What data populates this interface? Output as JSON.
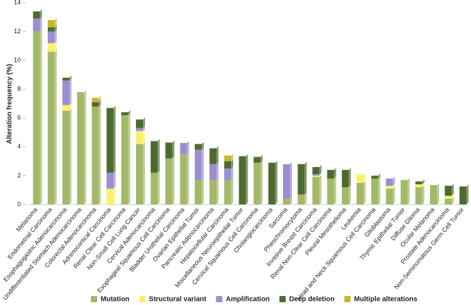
{
  "chart_data": {
    "type": "stacked_bar",
    "y_label": "Alteration frequency (%)",
    "ylim": [
      0,
      14
    ],
    "yticks": [
      0,
      2,
      4,
      6,
      8,
      10,
      12,
      14
    ],
    "categories": [
      "Melanoma",
      "Endometrial Carcinoma",
      "Esophagogastric Adenocarcinoma",
      "Undifferentiated Stomach Adenocarcinoma",
      "Colorectal Adenocarcinoma",
      "Adrenocortical Carcinoma",
      "Renal Clear Cell Carcinoma",
      "Non-Small Cell Lung Cancer",
      "Cervical Adenocarcinoma",
      "Esophageal Squamous Cell Carcinoma",
      "Bladder Urothelial Carcinoma",
      "Ovarian Epithelial Tumor",
      "Pancreatic Adenocarcinoma",
      "Hepatocellular Carcinoma",
      "Miscellaneous Neuroepithelial Tumor",
      "Cervical Squamous Cell Carcinoma",
      "Cholangiocarcinoma",
      "Sarcoma",
      "Pheochromocytoma",
      "Invasive Breast Carcinoma",
      "Renal Non-Clear Cell Carcinoma",
      "Pleural Mesothelioma",
      "Leukemia",
      "Head and Neck Squamous Cell Carcinoma",
      "Glioblastoma",
      "Thymic Epithelial Tumor",
      "Diffuse Glioma",
      "Ocular Melanoma",
      "Prostate Adenocarcinoma",
      "Non-Seminomatous Germ Cell Tumor"
    ],
    "series": [
      {
        "name": "Mutation",
        "color": "#a3b868",
        "values": [
          12.0,
          10.6,
          6.5,
          7.8,
          6.8,
          0,
          6.2,
          4.2,
          2.2,
          3.2,
          3.5,
          1.7,
          1.7,
          1.7,
          0,
          2.9,
          0,
          0.4,
          0.7,
          1.9,
          1.8,
          1.2,
          1.5,
          1.8,
          1.1,
          1.7,
          1.2,
          1.35,
          0.4,
          0
        ]
      },
      {
        "name": "Structural variant",
        "color": "#fbf06a",
        "values": [
          0,
          0.6,
          0.4,
          0,
          0,
          1.1,
          0,
          0.9,
          0,
          0,
          0,
          0,
          0,
          0,
          0,
          0,
          0,
          0,
          0,
          0.1,
          0,
          0,
          0.6,
          0,
          0.2,
          0,
          0.2,
          0,
          0.2,
          0
        ]
      },
      {
        "name": "Amplification",
        "color": "#9b8fd2",
        "values": [
          0.9,
          0.8,
          1.7,
          0,
          0,
          1.1,
          0,
          0.2,
          0,
          0,
          0.7,
          2.1,
          1.1,
          0.8,
          0,
          0,
          0,
          2.4,
          0,
          0.1,
          0,
          0,
          0,
          0,
          0.5,
          0,
          0,
          0,
          0,
          0
        ]
      },
      {
        "name": "Deep deletion",
        "color": "#4d6b30",
        "values": [
          0.5,
          0.3,
          0.2,
          0,
          0.3,
          4.5,
          0.2,
          0.6,
          2.2,
          1.1,
          0.05,
          0.4,
          1.1,
          0.5,
          3.35,
          0.4,
          2.9,
          0,
          2.1,
          0.5,
          0.6,
          1.2,
          0,
          0.2,
          0,
          0,
          0.2,
          0,
          0.7,
          1.25
        ]
      },
      {
        "name": "Multiple alterations",
        "color": "#c9b52a",
        "values": [
          0,
          0.5,
          0,
          0,
          0.3,
          0,
          0,
          0,
          0,
          0,
          0,
          0,
          0,
          0.4,
          0,
          0,
          0,
          0,
          0,
          0,
          0,
          0,
          0,
          0,
          0,
          0,
          0,
          0,
          0,
          0
        ]
      }
    ]
  }
}
